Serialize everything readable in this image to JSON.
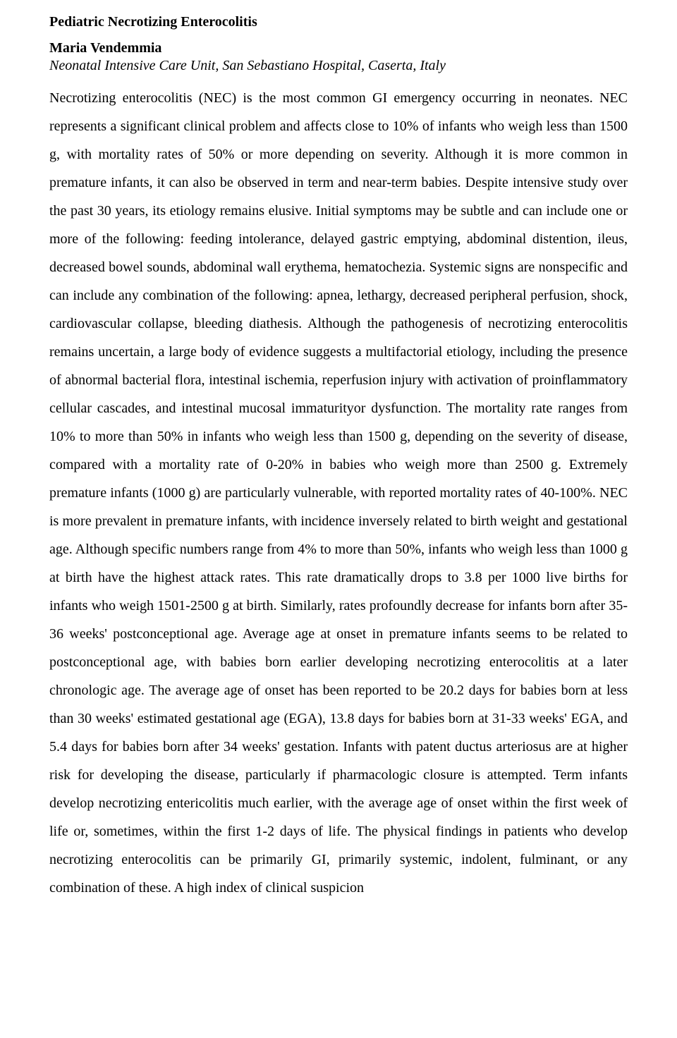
{
  "title": "Pediatric Necrotizing Enterocolitis",
  "author": "Maria Vendemmia",
  "affiliation": "Neonatal Intensive Care Unit, San Sebastiano Hospital, Caserta, Italy",
  "body": "Necrotizing enterocolitis (NEC) is the most common GI emergency occurring in neonates. NEC represents a significant clinical problem and affects close to 10% of infants who weigh less than 1500 g, with mortality rates of 50% or more depending on severity. Although it is more common in premature infants, it can also be observed in term and near-term babies. Despite intensive study over the past 30 years, its etiology remains elusive. Initial symptoms may be subtle and can include one or more of the following: feeding intolerance, delayed gastric emptying, abdominal distention, ileus, decreased bowel sounds, abdominal wall erythema, hematochezia. Systemic signs are nonspecific and can include any combination of the following: apnea, lethargy, decreased peripheral perfusion, shock, cardiovascular collapse, bleeding diathesis. Although the pathogenesis of necrotizing enterocolitis remains uncertain, a large body of evidence suggests a multifactorial etiology, including the presence of abnormal bacterial flora, intestinal ischemia, reperfusion injury with activation of proinflammatory cellular cascades, and intestinal mucosal immaturityor dysfunction. The mortality rate ranges from 10% to more than 50% in infants who weigh less than 1500 g, depending on the severity of disease, compared with a mortality rate of 0-20% in babies who weigh more than 2500 g. Extremely premature infants (1000 g) are particularly vulnerable, with reported mortality rates of 40-100%. NEC is more prevalent in premature infants, with incidence inversely related to birth weight and gestational age. Although specific numbers range from 4% to more than 50%, infants who weigh less than 1000 g at birth have the highest attack rates. This rate dramatically drops to 3.8 per 1000 live births for infants who weigh 1501-2500 g at birth. Similarly, rates profoundly decrease for infants born after 35-36 weeks' postconceptional age. Average age at onset in premature infants seems to be related to postconceptional age, with babies born earlier developing necrotizing enterocolitis at a later chronologic age. The average age of onset has been reported to be 20.2 days for babies born at less than 30 weeks' estimated gestational age (EGA), 13.8 days for babies born at 31-33 weeks' EGA, and 5.4 days for babies born after 34 weeks' gestation. Infants with patent ductus arteriosus are at higher risk for developing the disease, particularly if pharmacologic closure is attempted. Term infants develop necrotizing entericolitis much earlier, with the average age of onset within the first week of life or, sometimes, within the first 1-2 days of life. The physical findings in patients who develop necrotizing enterocolitis can be primarily GI, primarily systemic, indolent, fulminant, or any combination of these. A high index of clinical suspicion"
}
